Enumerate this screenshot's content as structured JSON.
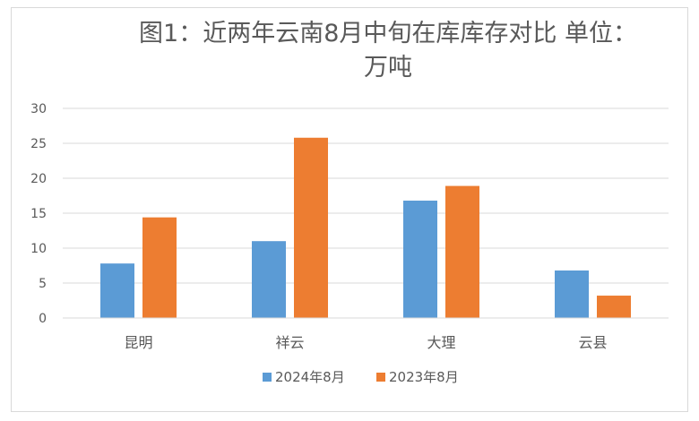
{
  "chart_data": {
    "type": "bar",
    "title": "图1：近两年云南8月中旬在库库存对比 单位：万吨",
    "categories": [
      "昆明",
      "祥云",
      "大理",
      "云县"
    ],
    "series": [
      {
        "name": "2024年8月",
        "values": [
          7.8,
          11.0,
          16.8,
          6.8
        ],
        "color": "#5b9bd5"
      },
      {
        "name": "2023年8月",
        "values": [
          14.4,
          25.8,
          18.9,
          3.2
        ],
        "color": "#ed7d31"
      }
    ],
    "y_ticks": [
      0,
      5,
      10,
      15,
      20,
      25,
      30
    ],
    "ylim": [
      0,
      30
    ],
    "grid": true,
    "legend_position": "bottom"
  }
}
